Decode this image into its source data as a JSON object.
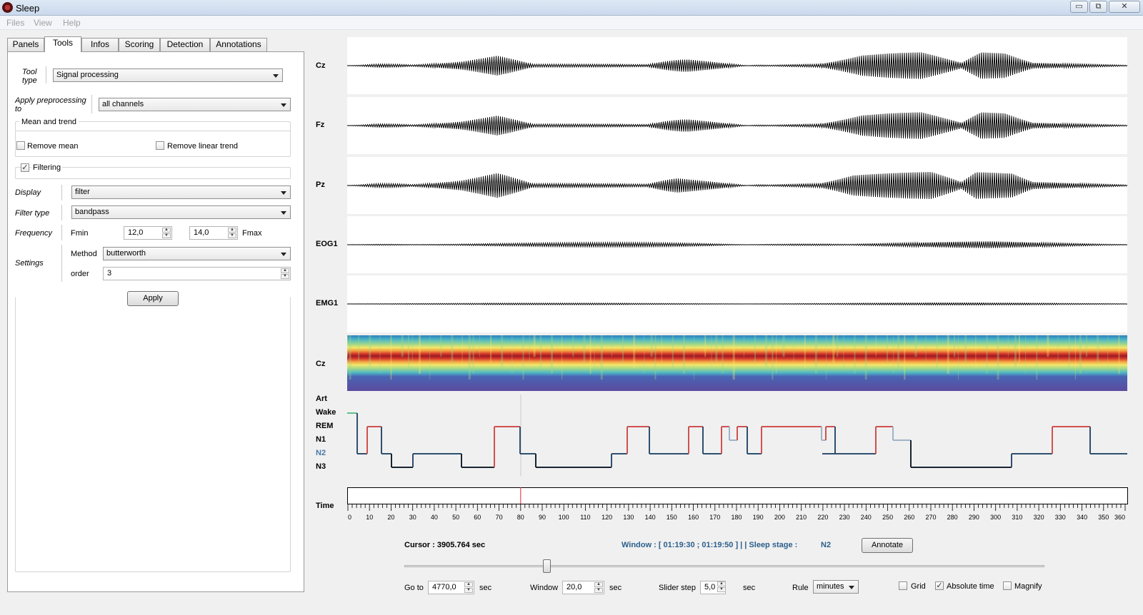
{
  "window": {
    "title": "Sleep",
    "btn_min": "▭",
    "btn_max": "⧉",
    "btn_close": "✕"
  },
  "menu": [
    "Files",
    "View",
    "Help"
  ],
  "tabs": [
    "Panels",
    "Tools",
    "Infos",
    "Scoring",
    "Detection",
    "Annotations"
  ],
  "tools": {
    "tool_type_label": "Tool type",
    "tool_type_value": "Signal processing",
    "apply_label": "Apply preprocessing to",
    "apply_value": "all channels",
    "mean_trend_title": "Mean and trend",
    "remove_mean": "Remove mean",
    "remove_linear_trend": "Remove linear trend",
    "filtering_label": "Filtering",
    "filtering_checked": "✓",
    "display_label": "Display",
    "display_value": "filter",
    "filter_type_label": "Filter type",
    "filter_type_value": "bandpass",
    "frequency_label": "Frequency",
    "fmin_label": "Fmin",
    "fmin_value": "12,0",
    "fmax_value": "14,0",
    "fmax_label": "Fmax",
    "settings_label": "Settings",
    "method_label": "Method",
    "method_value": "butterworth",
    "order_label": "order",
    "order_value": "3",
    "apply_button": "Apply"
  },
  "channels": [
    "Cz",
    "Fz",
    "Pz",
    "EOG1",
    "EMG1"
  ],
  "spectrogram_label": "Cz",
  "hypnogram": {
    "stages": [
      "Art",
      "Wake",
      "REM",
      "N1",
      "N2",
      "N3"
    ],
    "highlight_stage": "N2",
    "colors": {
      "Wake": "#5fbf8f",
      "REM": "#d05050",
      "N1": "#9fb3c8",
      "N2": "#2f4f6f",
      "N3": "#1a2330"
    }
  },
  "timeline": {
    "label": "Time",
    "ticks": [
      "0",
      "10",
      "20",
      "30",
      "40",
      "50",
      "60",
      "70",
      "80",
      "90",
      "100",
      "110",
      "120",
      "130",
      "140",
      "150",
      "160",
      "170",
      "180",
      "190",
      "200",
      "210",
      "220",
      "230",
      "240",
      "250",
      "260",
      "270",
      "280",
      "290",
      "300",
      "310",
      "320",
      "330",
      "340",
      "350",
      "360"
    ],
    "cursor_position": 80
  },
  "status": {
    "cursor_label": "Cursor : 3905.764 sec",
    "window_text": "Window : [ 01:19:30 ; 01:19:50 ] | | Sleep stage :",
    "sleep_stage": "N2",
    "annotate_button": "Annotate"
  },
  "controls": {
    "goto_label": "Go to",
    "goto_value": "4770,0",
    "goto_unit": "sec",
    "window_label": "Window",
    "window_value": "20,0",
    "window_unit": "sec",
    "slider_step_label": "Slider step",
    "slider_step_value": "5,0",
    "slider_step_unit": "sec",
    "rule_label": "Rule",
    "rule_value": "minutes",
    "grid_label": "Grid",
    "absolute_time_label": "Absolute time",
    "absolute_time_checked": "✓",
    "magnify_label": "Magnify"
  }
}
